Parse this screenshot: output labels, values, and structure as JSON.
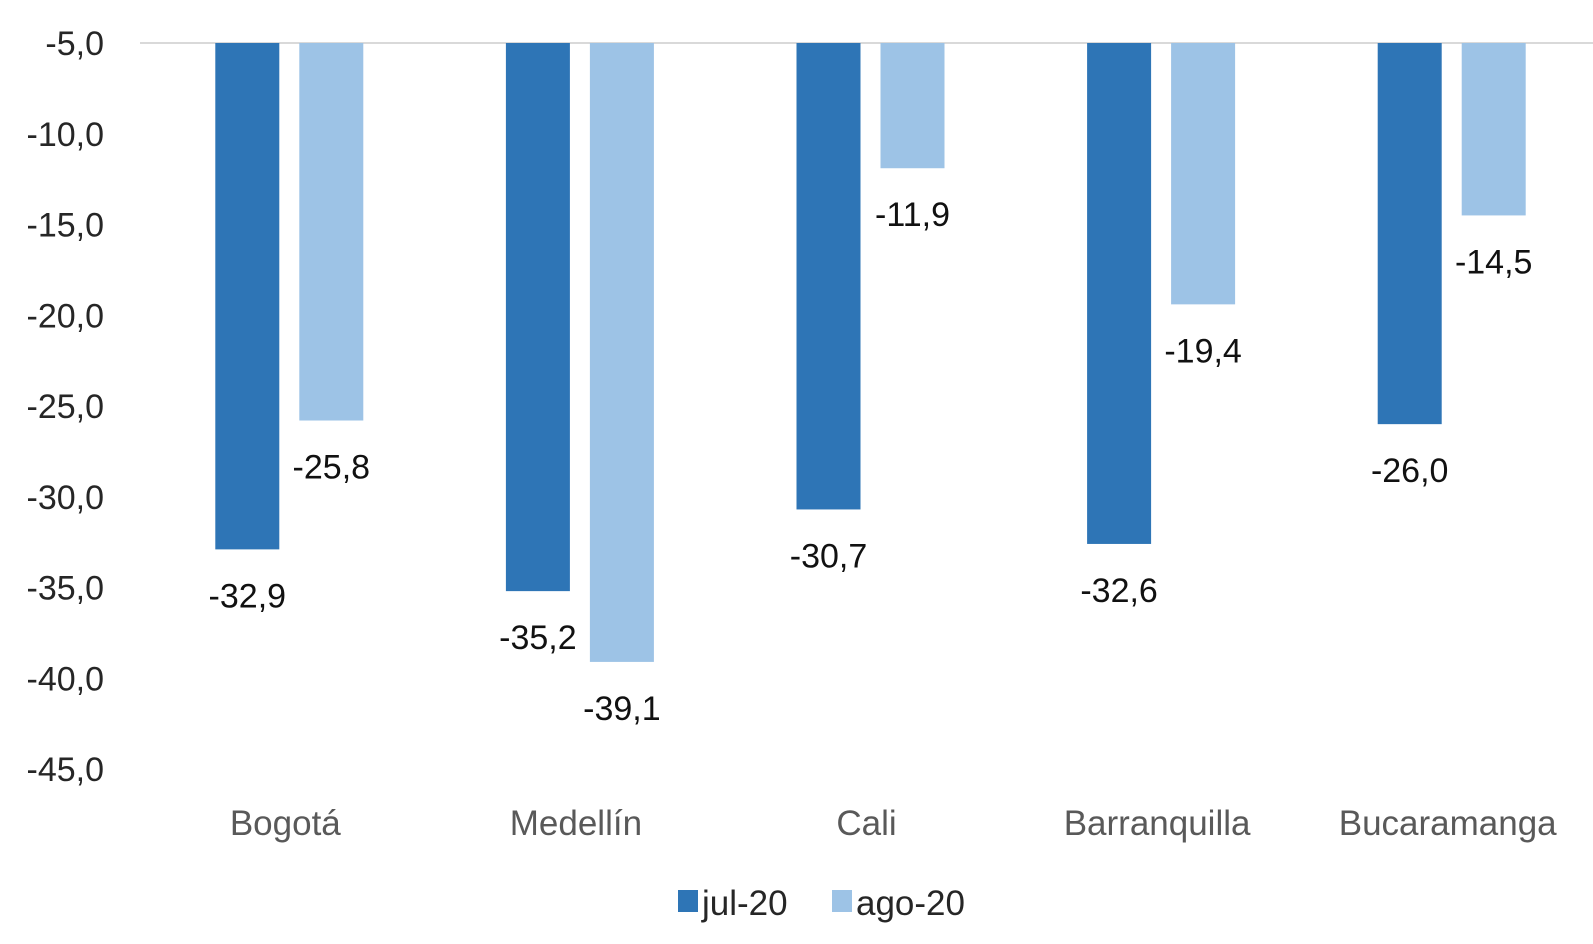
{
  "chart_data": {
    "type": "bar",
    "title": "",
    "xlabel": "",
    "ylabel": "",
    "categories": [
      "Bogotá",
      "Medellín",
      "Cali",
      "Barranquilla",
      "Bucaramanga"
    ],
    "series": [
      {
        "name": "jul-20",
        "color": "#2E75B6",
        "values": [
          -32.9,
          -35.2,
          -30.7,
          -32.6,
          -26.0
        ],
        "labels": [
          "-32,9",
          "-35,2",
          "-30,7",
          "-32,6",
          "-26,0"
        ]
      },
      {
        "name": "ago-20",
        "color": "#9DC3E6",
        "values": [
          -25.8,
          -39.1,
          -11.9,
          -19.4,
          -14.5
        ],
        "labels": [
          "-25,8",
          "-39,1",
          "-11,9",
          "-19,4",
          "-14,5"
        ]
      }
    ],
    "ylim": [
      -45,
      -5
    ],
    "yticks": [
      -5,
      -10,
      -15,
      -20,
      -25,
      -30,
      -35,
      -40,
      -45
    ],
    "ytick_labels": [
      "-5,0",
      "-10,0",
      "-15,0",
      "-20,0",
      "-25,0",
      "-30,0",
      "-35,0",
      "-40,0",
      "-45,0"
    ],
    "grid": false,
    "legend": "bottom-center",
    "axis_line_color": "#D9D9D9"
  }
}
